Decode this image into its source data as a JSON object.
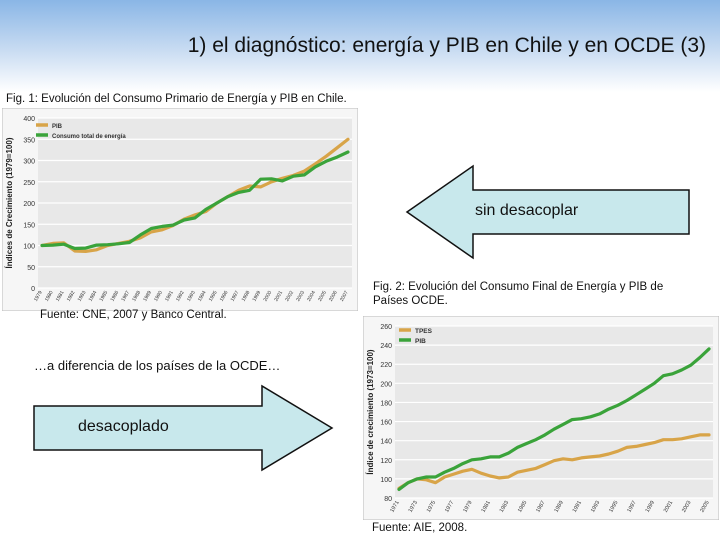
{
  "slide": {
    "title": "1) el diagnóstico: energía y PIB en Chile y en OCDE (3)",
    "fig1_caption": "Fig. 1: Evolución del Consumo Primario de Energía y PIB en Chile.",
    "fig1_source": "Fuente: CNE, 2007 y Banco Central.",
    "fig2_caption": "Fig. 2: Evolución del Consumo Final de Energía y PIB de Países OCDE.",
    "fig2_source": "Fuente: AIE, 2008.",
    "contrast_note": "…a diferencia de los países de la OCDE…",
    "arrow_left_label": "sin desacoplar",
    "arrow_right_label": "desacoplado",
    "colors": {
      "arrow_fill": "#c8e8ec",
      "pib": "#d8a448",
      "energy": "#3aa33a",
      "chart_bg": "#e8e8e8"
    }
  },
  "chart_data": [
    {
      "type": "line",
      "title": "",
      "ylabel": "Índices de Crecimiento (1979=100)",
      "xlabel": "",
      "ylim": [
        0,
        400
      ],
      "yticks": [
        0,
        50,
        100,
        150,
        200,
        250,
        300,
        350,
        400
      ],
      "x": [
        "1979",
        "1980",
        "1981",
        "1982",
        "1983",
        "1984",
        "1985",
        "1986",
        "1987",
        "1988",
        "1989",
        "1990",
        "1991",
        "1992",
        "1993",
        "1994",
        "1995",
        "1996",
        "1997",
        "1998",
        "1999",
        "2000",
        "2001",
        "2002",
        "2003",
        "2004",
        "2005",
        "2006",
        "2007"
      ],
      "series": [
        {
          "name": "PIB",
          "values": [
            100,
            105,
            106,
            87,
            86,
            90,
            100,
            105,
            110,
            118,
            132,
            137,
            147,
            162,
            172,
            180,
            200,
            215,
            230,
            240,
            238,
            250,
            258,
            265,
            275,
            292,
            310,
            330,
            350
          ]
        },
        {
          "name": "Consumo total de energía",
          "values": [
            100,
            101,
            103,
            93,
            94,
            101,
            102,
            104,
            107,
            125,
            140,
            145,
            148,
            160,
            165,
            185,
            200,
            215,
            225,
            230,
            256,
            257,
            252,
            263,
            266,
            285,
            298,
            308,
            320
          ]
        }
      ]
    },
    {
      "type": "line",
      "title": "",
      "ylabel": "Índice de crecimiento (1973=100)",
      "xlabel": "",
      "ylim": [
        80,
        260
      ],
      "yticks": [
        80,
        100,
        120,
        140,
        160,
        180,
        200,
        220,
        240,
        260
      ],
      "x": [
        "1971",
        "1972",
        "1973",
        "1974",
        "1975",
        "1976",
        "1977",
        "1978",
        "1979",
        "1980",
        "1981",
        "1982",
        "1983",
        "1984",
        "1985",
        "1986",
        "1987",
        "1988",
        "1989",
        "1990",
        "1991",
        "1992",
        "1993",
        "1994",
        "1995",
        "1996",
        "1997",
        "1998",
        "1999",
        "2000",
        "2001",
        "2002",
        "2003",
        "2004",
        "2005"
      ],
      "xtick_labels": [
        "1971",
        "1973",
        "1975",
        "1977",
        "1979",
        "1981",
        "1983",
        "1985",
        "1987",
        "1989",
        "1991",
        "1993",
        "1995",
        "1997",
        "1999",
        "2001",
        "2003",
        "2005"
      ],
      "series": [
        {
          "name": "TPES",
          "values": [
            90,
            96,
            100,
            99,
            96,
            102,
            105,
            108,
            110,
            106,
            103,
            101,
            102,
            107,
            109,
            111,
            115,
            119,
            121,
            120,
            122,
            123,
            124,
            126,
            129,
            133,
            134,
            136,
            138,
            141,
            141,
            142,
            144,
            146,
            146
          ]
        },
        {
          "name": "PIB",
          "values": [
            89,
            96,
            100,
            102,
            102,
            107,
            111,
            116,
            120,
            121,
            123,
            123,
            127,
            133,
            137,
            141,
            146,
            152,
            157,
            162,
            163,
            165,
            168,
            173,
            177,
            182,
            188,
            194,
            200,
            208,
            210,
            214,
            219,
            227,
            236
          ]
        }
      ]
    }
  ]
}
